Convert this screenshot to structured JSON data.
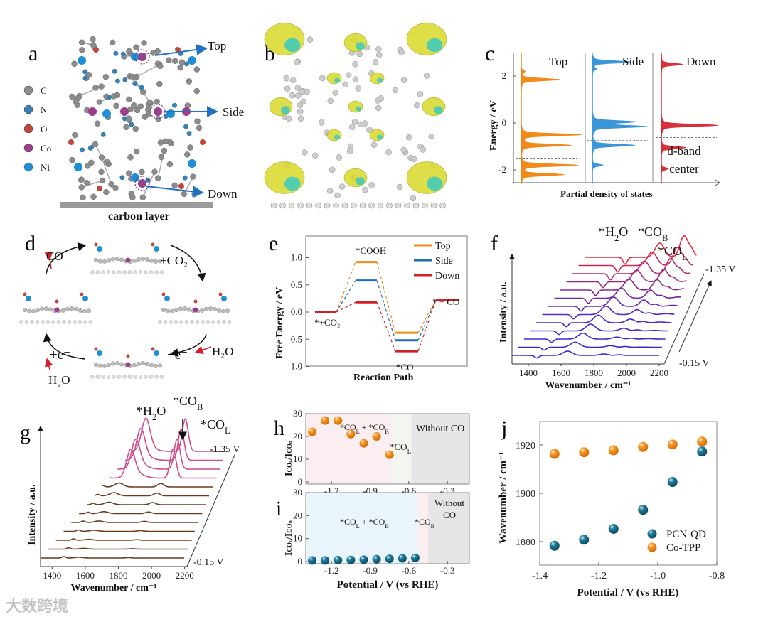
{
  "panel_labels": {
    "a": "a",
    "b": "b",
    "c": "c",
    "d": "d",
    "e": "e",
    "f": "f",
    "g": "g",
    "h": "h",
    "i": "i",
    "j": "j"
  },
  "panel_a": {
    "legend": [
      {
        "label": "C",
        "color": "#8c8c8c"
      },
      {
        "label": "N",
        "color": "#3a7fb0"
      },
      {
        "label": "O",
        "color": "#c0463a"
      },
      {
        "label": "Co",
        "color": "#9a3f8c"
      },
      {
        "label": "Ni",
        "color": "#1f8fd6"
      }
    ],
    "sites": {
      "top": "Top",
      "side": "Side",
      "down": "Down"
    },
    "substrate_label": "carbon layer",
    "arrow_color": "#1f73c0"
  },
  "panel_d": {
    "co": "CO",
    "co2": "+CO₂",
    "e1": "+e⁻",
    "e2": "+e⁻",
    "h2o_right": "H₂O",
    "h2o_left": "H₂O"
  },
  "watermark": "大数跨境",
  "chart_data": [
    {
      "id": "c",
      "type": "area",
      "xlabel": "Partial density of states",
      "ylabel": "Energy / eV",
      "ylim": [
        -2.6,
        2.9
      ],
      "yticks": [
        2,
        0,
        -2
      ],
      "panels": [
        {
          "name": "Top",
          "color": "#f28a1a",
          "d_band_center": -1.5,
          "peaks": [
            {
              "e": 2.2,
              "a": 0.05
            },
            {
              "e": 1.85,
              "a": 0.55
            },
            {
              "e": -0.5,
              "a": 0.85
            },
            {
              "e": -0.95,
              "a": 0.7
            },
            {
              "e": -1.8,
              "a": 0.8
            },
            {
              "e": -2.2,
              "a": 0.6
            }
          ]
        },
        {
          "name": "Side",
          "color": "#3a96d8",
          "d_band_center": -0.75,
          "peaks": [
            {
              "e": 2.6,
              "a": 0.55
            },
            {
              "e": 2.3,
              "a": 0.05
            },
            {
              "e": 0.05,
              "a": 0.6
            },
            {
              "e": -0.15,
              "a": 0.75
            },
            {
              "e": -0.95,
              "a": 0.6
            },
            {
              "e": -1.8,
              "a": 0.15
            }
          ]
        },
        {
          "name": "Down",
          "color": "#d8303a",
          "d_band_center": -0.62,
          "peaks": [
            {
              "e": 2.5,
              "a": 0.3
            },
            {
              "e": -0.1,
              "a": 0.8
            },
            {
              "e": -1.05,
              "a": 0.35
            },
            {
              "e": -1.95,
              "a": 0.1
            }
          ]
        }
      ],
      "annotation": "d-band center"
    },
    {
      "id": "e",
      "type": "line",
      "title": "",
      "xlabel": "Reaction Path",
      "ylabel": "Free Energy / eV",
      "ylim": [
        -1.0,
        1.4
      ],
      "yticks": [
        "1.0",
        "0.5",
        "0.0",
        "-0.5",
        "-1.0"
      ],
      "steps": [
        "*+CO₂",
        "*COOH",
        "*CO",
        "* + CO"
      ],
      "series": [
        {
          "name": "Top",
          "color": "#f28a1a",
          "values": [
            0.0,
            0.92,
            -0.38,
            0.22
          ]
        },
        {
          "name": "Side",
          "color": "#1f6fb0",
          "values": [
            0.0,
            0.58,
            -0.52,
            0.22
          ]
        },
        {
          "name": "Down",
          "color": "#d0202a",
          "values": [
            0.0,
            0.18,
            -0.72,
            0.22
          ]
        }
      ],
      "legend": "top-right"
    },
    {
      "id": "f",
      "type": "line",
      "xlabel": "Wavenumber / cm⁻¹",
      "ylabel": "Intensity / a.u.",
      "xlim": [
        1300,
        2200
      ],
      "xticks": [
        "1400",
        "1600",
        "1800",
        "2000",
        "2200"
      ],
      "potential_start": "-0.15 V",
      "potential_end": "-1.35 V",
      "n_curves": 13,
      "peaks": {
        "H2O": 1640,
        "CO_B": 1870,
        "CO_L": 2050
      },
      "peak_labels": [
        {
          "text": "*H",
          "sub": "2",
          "tail": "O"
        },
        {
          "text": "*CO",
          "sub": "B"
        },
        {
          "text": "*CO",
          "sub": "L"
        }
      ]
    },
    {
      "id": "g",
      "type": "line",
      "xlabel": "Wavenumber / cm⁻¹",
      "ylabel": "Intensity / a.u.",
      "xlim": [
        1330,
        2200
      ],
      "xticks": [
        "1400",
        "1600",
        "1800",
        "2000",
        "2200"
      ],
      "potential_start": "-0.15 V",
      "potential_end": "-1.35 V",
      "n_curves": 13,
      "peaks": {
        "H2O": 1560,
        "CO_L": 1860
      },
      "peak_labels": [
        {
          "text": "*H",
          "sub": "2",
          "tail": "O"
        },
        {
          "text": "*CO",
          "sub": "B"
        },
        {
          "text": "*CO",
          "sub": "L"
        }
      ]
    },
    {
      "id": "h",
      "type": "scatter",
      "ylabel": "I_COL/I_COB",
      "xlim": [
        -1.4,
        -0.13
      ],
      "ylim": [
        0,
        30
      ],
      "xticks": [
        "-1.2",
        "-0.9",
        "-0.6",
        "-0.3"
      ],
      "yticks": [
        "0",
        "10",
        "20",
        "30"
      ],
      "color": "#f28a1a",
      "x": [
        -1.35,
        -1.25,
        -1.15,
        -1.05,
        -0.95,
        -0.85,
        -0.75
      ],
      "y": [
        22,
        27,
        27,
        21,
        17,
        20,
        12
      ],
      "regions": [
        {
          "label": "*CO_L + *CO_B",
          "from": -1.4,
          "to": -0.73,
          "color": "#fbeef0"
        },
        {
          "label": "*CO_L",
          "from": -0.73,
          "to": -0.58,
          "color": "#f2f6ee"
        },
        {
          "label": "Without CO",
          "from": -0.58,
          "to": -0.13,
          "color": "#e6e6e6"
        }
      ]
    },
    {
      "id": "i",
      "type": "scatter",
      "xlabel": "Potential / V (vs RHE)",
      "ylabel": "I_COL/I_COB",
      "xlim": [
        -1.4,
        -0.13
      ],
      "ylim": [
        0,
        30
      ],
      "xticks": [
        "-1.2",
        "-0.9",
        "-0.6",
        "-0.3"
      ],
      "yticks": [
        "0",
        "10",
        "20",
        "30"
      ],
      "color": "#1a6f8c",
      "x": [
        -1.35,
        -1.25,
        -1.15,
        -1.05,
        -0.95,
        -0.85,
        -0.75,
        -0.65,
        -0.55
      ],
      "y": [
        0.5,
        0.5,
        0.6,
        0.7,
        0.8,
        1.0,
        1.2,
        1.4,
        1.6
      ],
      "regions": [
        {
          "label": "*CO_L + *CO_B",
          "from": -1.4,
          "to": -0.53,
          "color": "#eaf4fb"
        },
        {
          "label": "*CO_B",
          "from": -0.53,
          "to": -0.45,
          "color": "#fbeef0"
        },
        {
          "label": "Without CO",
          "from": -0.45,
          "to": -0.13,
          "color": "#e6e6e6"
        }
      ]
    },
    {
      "id": "j",
      "type": "scatter",
      "xlabel": "Potential / V (vs RHE)",
      "ylabel": "Wavenumber / cm⁻¹",
      "xlim": [
        -1.4,
        -0.8
      ],
      "ylim": [
        1870,
        1930
      ],
      "xticks": [
        "-1.4",
        "-1.2",
        "-1.0",
        "-0.8"
      ],
      "yticks": [
        "1880",
        "1900",
        "1920"
      ],
      "x": [
        -1.35,
        -1.25,
        -1.15,
        -1.05,
        -0.95,
        -0.85
      ],
      "series": [
        {
          "name": "PCN-QD",
          "color": "#1a6f8c",
          "values": [
            1878.3,
            1880.8,
            1885.3,
            1893.2,
            1904.7,
            1917.3
          ]
        },
        {
          "name": "Co-TPP",
          "color": "#f28a1a",
          "values": [
            1916.3,
            1917.0,
            1917.8,
            1919.2,
            1920.2,
            1921.4
          ]
        }
      ],
      "legend": "bottom-right"
    }
  ]
}
